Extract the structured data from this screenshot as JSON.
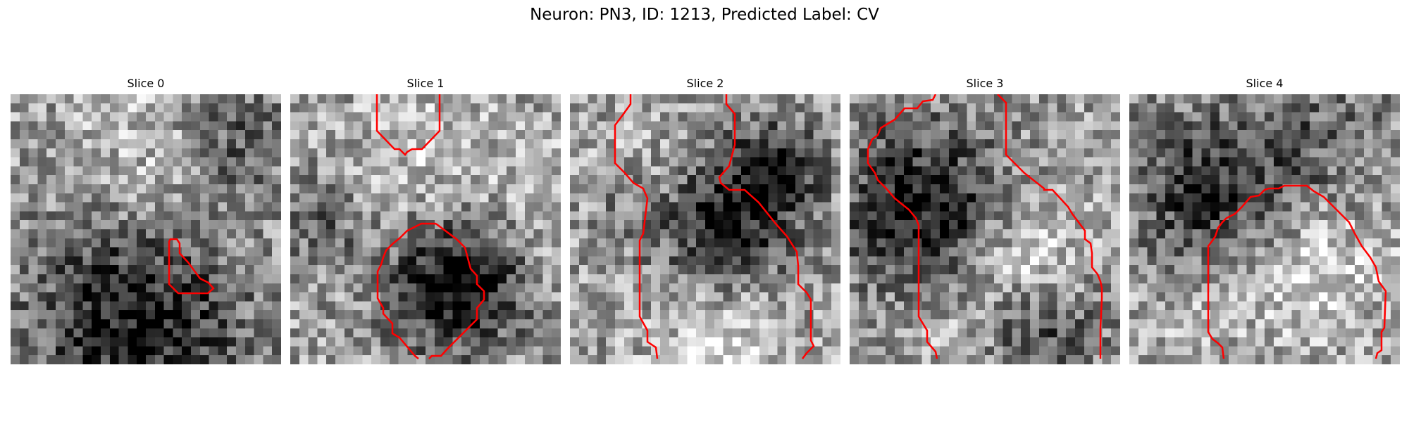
{
  "figure": {
    "title": "Neuron: PN3, ID: 1213, Predicted Label: CV",
    "contour_color": "#ff0000",
    "colormap": "gray",
    "panels": [
      {
        "title": "Slice 0"
      },
      {
        "title": "Slice 1"
      },
      {
        "title": "Slice 2"
      },
      {
        "title": "Slice 3"
      },
      {
        "title": "Slice 4"
      }
    ]
  }
}
